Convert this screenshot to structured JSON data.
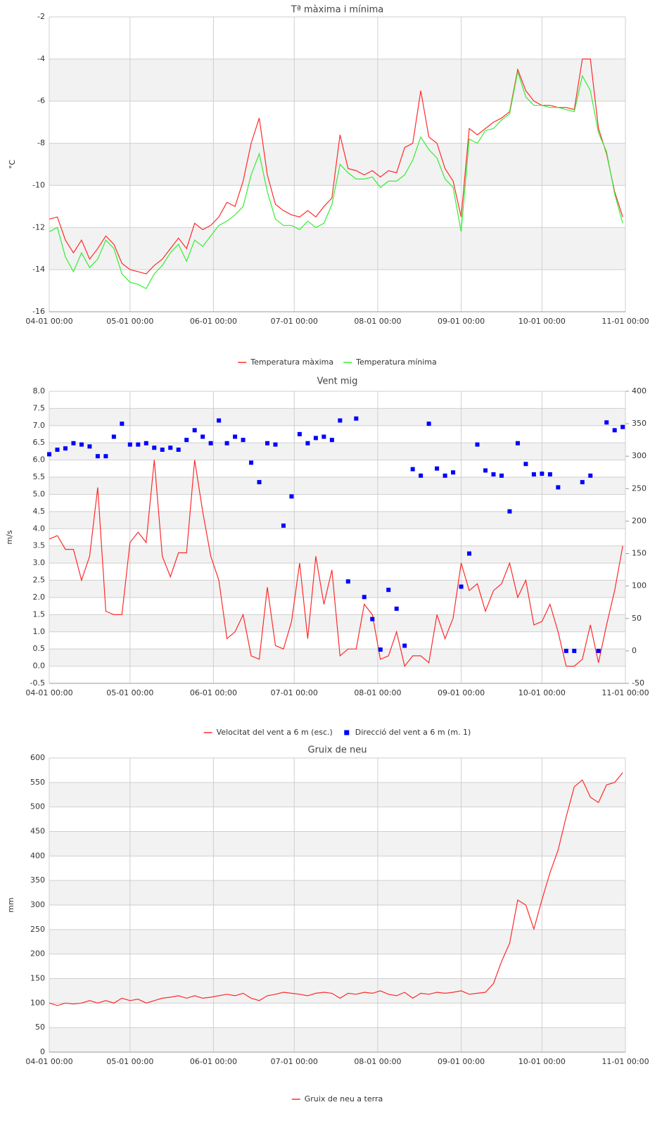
{
  "chart_data": [
    {
      "type": "line",
      "title": "Tª màxima i mínima",
      "y_label": "°C",
      "x": [
        "04-01 00:00",
        "04-04 00:00",
        "04-07 00:00",
        "04-10 00:00",
        "04-13 00:00",
        "04-16 00:00",
        "04-19 00:00",
        "04-22 00:00",
        "04-25 00:00",
        "04-28 00:00",
        "05-01 00:00",
        "05-04 00:00",
        "05-07 00:00",
        "05-10 00:00",
        "05-13 00:00",
        "05-16 00:00",
        "05-19 00:00",
        "05-22 00:00",
        "05-25 00:00",
        "05-28 00:00",
        "05-31 00:00",
        "06-03 00:00",
        "06-06 00:00",
        "06-09 00:00",
        "06-12 00:00",
        "06-15 00:00",
        "06-18 00:00",
        "06-21 00:00",
        "06-24 00:00",
        "06-27 00:00",
        "06-30 00:00",
        "07-03 00:00",
        "07-06 00:00",
        "07-09 00:00",
        "07-12 00:00",
        "07-15 00:00",
        "07-18 00:00",
        "07-21 00:00",
        "07-24 00:00",
        "07-27 00:00",
        "07-30 00:00",
        "08-02 00:00",
        "08-05 00:00",
        "08-08 00:00",
        "08-11 00:00",
        "08-14 00:00",
        "08-17 00:00",
        "08-20 00:00",
        "08-23 00:00",
        "08-26 00:00",
        "08-29 00:00",
        "09-01 00:00",
        "09-04 00:00",
        "09-07 00:00",
        "09-10 00:00",
        "09-13 00:00",
        "09-16 00:00",
        "09-19 00:00",
        "09-22 00:00",
        "09-25 00:00",
        "09-28 00:00",
        "10-01 00:00",
        "10-04 00:00",
        "10-07 00:00",
        "10-10 00:00",
        "10-13 00:00",
        "10-16 00:00",
        "10-19 00:00",
        "10-22 00:00",
        "10-25 00:00",
        "10-28 00:00",
        "10-31 00:00"
      ],
      "series": [
        {
          "name": "Temperatura màxima",
          "color": "#ff2a2a",
          "values": [
            -11.6,
            -11.5,
            -12.6,
            -13.2,
            -12.6,
            -13.5,
            -13.0,
            -12.4,
            -12.8,
            -13.7,
            -14.0,
            -14.1,
            -14.2,
            -13.8,
            -13.5,
            -13.0,
            -12.5,
            -13.0,
            -11.8,
            -12.1,
            -11.9,
            -11.5,
            -10.8,
            -11.0,
            -9.8,
            -8.0,
            -6.8,
            -9.5,
            -10.9,
            -11.2,
            -11.4,
            -11.5,
            -11.2,
            -11.5,
            -11.0,
            -10.6,
            -7.6,
            -9.2,
            -9.3,
            -9.5,
            -9.3,
            -9.6,
            -9.3,
            -9.4,
            -8.2,
            -8.0,
            -5.5,
            -7.7,
            -8.0,
            -9.2,
            -9.8,
            -11.5,
            -7.3,
            -7.6,
            -7.3,
            -7.0,
            -6.8,
            -6.5,
            -4.5,
            -5.5,
            -6.0,
            -6.2,
            -6.2,
            -6.3,
            -6.3,
            -6.4,
            -4.0,
            -4.0,
            -7.3,
            -8.5,
            -10.3,
            -11.5
          ]
        },
        {
          "name": "Temperatura mínima",
          "color": "#33ee33",
          "values": [
            -12.2,
            -12.0,
            -13.4,
            -14.1,
            -13.2,
            -13.9,
            -13.5,
            -12.6,
            -13.0,
            -14.2,
            -14.6,
            -14.7,
            -14.9,
            -14.2,
            -13.8,
            -13.2,
            -12.8,
            -13.6,
            -12.6,
            -12.9,
            -12.4,
            -11.9,
            -11.7,
            -11.4,
            -11.0,
            -9.5,
            -8.5,
            -10.3,
            -11.6,
            -11.9,
            -11.9,
            -12.1,
            -11.7,
            -12.0,
            -11.8,
            -10.9,
            -9.0,
            -9.4,
            -9.7,
            -9.7,
            -9.6,
            -10.1,
            -9.8,
            -9.8,
            -9.5,
            -8.8,
            -7.7,
            -8.3,
            -8.7,
            -9.7,
            -10.1,
            -12.2,
            -7.8,
            -8.0,
            -7.4,
            -7.3,
            -6.9,
            -6.6,
            -4.6,
            -5.8,
            -6.2,
            -6.2,
            -6.3,
            -6.3,
            -6.4,
            -6.5,
            -4.8,
            -5.5,
            -7.5,
            -8.4,
            -10.4,
            -11.8
          ]
        }
      ],
      "xlim": [
        "04-01 00:00",
        "11-01 00:00"
      ],
      "xticks": [
        "04-01 00:00",
        "05-01 00:00",
        "06-01 00:00",
        "07-01 00:00",
        "08-01 00:00",
        "09-01 00:00",
        "10-01 00:00",
        "11-01 00:00"
      ],
      "ylim": [
        -16,
        -2
      ],
      "yticks": [
        -16,
        -14,
        -12,
        -10,
        -8,
        -6,
        -4,
        -2
      ],
      "grid": true,
      "legend": "bottom"
    },
    {
      "type": "line",
      "title": "Vent mig",
      "y_label": "m/s",
      "x": [
        "04-01 00:00",
        "04-04 00:00",
        "04-07 00:00",
        "04-10 00:00",
        "04-13 00:00",
        "04-16 00:00",
        "04-19 00:00",
        "04-22 00:00",
        "04-25 00:00",
        "04-28 00:00",
        "05-01 00:00",
        "05-04 00:00",
        "05-07 00:00",
        "05-10 00:00",
        "05-13 00:00",
        "05-16 00:00",
        "05-19 00:00",
        "05-22 00:00",
        "05-25 00:00",
        "05-28 00:00",
        "05-31 00:00",
        "06-03 00:00",
        "06-06 00:00",
        "06-09 00:00",
        "06-12 00:00",
        "06-15 00:00",
        "06-18 00:00",
        "06-21 00:00",
        "06-24 00:00",
        "06-27 00:00",
        "06-30 00:00",
        "07-03 00:00",
        "07-06 00:00",
        "07-09 00:00",
        "07-12 00:00",
        "07-15 00:00",
        "07-18 00:00",
        "07-21 00:00",
        "07-24 00:00",
        "07-27 00:00",
        "07-30 00:00",
        "08-02 00:00",
        "08-05 00:00",
        "08-08 00:00",
        "08-11 00:00",
        "08-14 00:00",
        "08-17 00:00",
        "08-20 00:00",
        "08-23 00:00",
        "08-26 00:00",
        "08-29 00:00",
        "09-01 00:00",
        "09-04 00:00",
        "09-07 00:00",
        "09-10 00:00",
        "09-13 00:00",
        "09-16 00:00",
        "09-19 00:00",
        "09-22 00:00",
        "09-25 00:00",
        "09-28 00:00",
        "10-01 00:00",
        "10-04 00:00",
        "10-07 00:00",
        "10-10 00:00",
        "10-13 00:00",
        "10-16 00:00",
        "10-19 00:00",
        "10-22 00:00",
        "10-25 00:00",
        "10-28 00:00",
        "10-31 00:00"
      ],
      "series": [
        {
          "name": "Velocitat del vent a 6 m (esc.)",
          "color": "#ff2a2a",
          "values": [
            3.7,
            3.8,
            3.4,
            3.4,
            2.5,
            3.2,
            5.2,
            1.6,
            1.5,
            1.5,
            3.6,
            3.9,
            3.6,
            6.0,
            3.2,
            2.6,
            3.3,
            3.3,
            6.0,
            4.5,
            3.2,
            2.5,
            0.8,
            1.0,
            1.5,
            0.3,
            0.2,
            2.3,
            0.6,
            0.5,
            1.3,
            3.0,
            0.8,
            3.2,
            1.8,
            2.8,
            0.3,
            0.5,
            0.5,
            1.8,
            1.5,
            0.2,
            0.3,
            1.0,
            0.0,
            0.3,
            0.3,
            0.1,
            1.5,
            0.8,
            1.4,
            3.0,
            2.2,
            2.4,
            1.6,
            2.2,
            2.4,
            3.0,
            2.0,
            2.5,
            1.2,
            1.3,
            1.8,
            1.0,
            0.0,
            0.0,
            0.2,
            1.2,
            0.1,
            1.2,
            2.2,
            3.5
          ]
        },
        {
          "name": "Direcció del vent a 6 m (m. 1)",
          "color": "#0000ff",
          "type": "scatter",
          "axis": "y2",
          "values": [
            303,
            310,
            312,
            320,
            318,
            315,
            300,
            300,
            330,
            350,
            318,
            318,
            320,
            313,
            310,
            313,
            310,
            325,
            340,
            330,
            320,
            355,
            320,
            330,
            325,
            290,
            260,
            320,
            318,
            193,
            238,
            334,
            320,
            328,
            330,
            325,
            355,
            107,
            358,
            83,
            49,
            2,
            94,
            65,
            8,
            280,
            270,
            350,
            281,
            270,
            275,
            99,
            150,
            318,
            278,
            272,
            270,
            215,
            320,
            288,
            272,
            273,
            272,
            252,
            0,
            0,
            260,
            270,
            0,
            352,
            340,
            345
          ]
        }
      ],
      "xlim": [
        "04-01 00:00",
        "11-01 00:00"
      ],
      "xticks": [
        "04-01 00:00",
        "05-01 00:00",
        "06-01 00:00",
        "07-01 00:00",
        "08-01 00:00",
        "09-01 00:00",
        "10-01 00:00",
        "11-01 00:00"
      ],
      "ylim": [
        -0.5,
        8
      ],
      "yticks": [
        -0.5,
        {
          "value": 0,
          "label": "0.0"
        },
        0.5,
        {
          "value": 1,
          "label": "1.0"
        },
        1.5,
        {
          "value": 2,
          "label": "2.0"
        },
        2.5,
        {
          "value": 3,
          "label": "3.0"
        },
        3.5,
        {
          "value": 4,
          "label": "4.0"
        },
        4.5,
        {
          "value": 5,
          "label": "5.0"
        },
        5.5,
        {
          "value": 6,
          "label": "6.0"
        },
        6.5,
        {
          "value": 7,
          "label": "7.0"
        },
        7.5,
        {
          "value": 8,
          "label": "8.0"
        }
      ],
      "y2lim": [
        -50,
        400
      ],
      "y2ticks": [
        -50,
        0,
        50,
        100,
        150,
        200,
        250,
        300,
        350,
        400
      ],
      "grid": true,
      "legend": "bottom"
    },
    {
      "type": "line",
      "title": "Gruix de neu",
      "y_label": "mm",
      "x": [
        "04-01 00:00",
        "04-04 00:00",
        "04-07 00:00",
        "04-10 00:00",
        "04-13 00:00",
        "04-16 00:00",
        "04-19 00:00",
        "04-22 00:00",
        "04-25 00:00",
        "04-28 00:00",
        "05-01 00:00",
        "05-04 00:00",
        "05-07 00:00",
        "05-10 00:00",
        "05-13 00:00",
        "05-16 00:00",
        "05-19 00:00",
        "05-22 00:00",
        "05-25 00:00",
        "05-28 00:00",
        "05-31 00:00",
        "06-03 00:00",
        "06-06 00:00",
        "06-09 00:00",
        "06-12 00:00",
        "06-15 00:00",
        "06-18 00:00",
        "06-21 00:00",
        "06-24 00:00",
        "06-27 00:00",
        "06-30 00:00",
        "07-03 00:00",
        "07-06 00:00",
        "07-09 00:00",
        "07-12 00:00",
        "07-15 00:00",
        "07-18 00:00",
        "07-21 00:00",
        "07-24 00:00",
        "07-27 00:00",
        "07-30 00:00",
        "08-02 00:00",
        "08-05 00:00",
        "08-08 00:00",
        "08-11 00:00",
        "08-14 00:00",
        "08-17 00:00",
        "08-20 00:00",
        "08-23 00:00",
        "08-26 00:00",
        "08-29 00:00",
        "09-01 00:00",
        "09-04 00:00",
        "09-07 00:00",
        "09-10 00:00",
        "09-13 00:00",
        "09-16 00:00",
        "09-19 00:00",
        "09-22 00:00",
        "09-25 00:00",
        "09-28 00:00",
        "10-01 00:00",
        "10-04 00:00",
        "10-07 00:00",
        "10-10 00:00",
        "10-13 00:00",
        "10-16 00:00",
        "10-19 00:00",
        "10-22 00:00",
        "10-25 00:00",
        "10-28 00:00",
        "10-31 00:00"
      ],
      "series": [
        {
          "name": "Gruix de neu a terra",
          "color": "#ff2a2a",
          "values": [
            100,
            95,
            100,
            98,
            100,
            105,
            100,
            105,
            100,
            110,
            105,
            108,
            100,
            105,
            110,
            112,
            115,
            110,
            115,
            110,
            112,
            115,
            118,
            115,
            120,
            110,
            105,
            115,
            118,
            122,
            120,
            118,
            115,
            120,
            122,
            120,
            110,
            120,
            118,
            122,
            120,
            125,
            118,
            115,
            122,
            110,
            120,
            118,
            122,
            120,
            122,
            125,
            118,
            120,
            122,
            140,
            185,
            222,
            310,
            300,
            251,
            311,
            366,
            412,
            480,
            541,
            555,
            520,
            509,
            545,
            550,
            570
          ]
        }
      ],
      "xlim": [
        "04-01 00:00",
        "11-01 00:00"
      ],
      "xticks": [
        "04-01 00:00",
        "05-01 00:00",
        "06-01 00:00",
        "07-01 00:00",
        "08-01 00:00",
        "09-01 00:00",
        "10-01 00:00",
        "11-01 00:00"
      ],
      "ylim": [
        0,
        600
      ],
      "yticks": [
        0,
        50,
        100,
        150,
        200,
        250,
        300,
        350,
        400,
        450,
        500,
        550,
        600
      ],
      "grid": true,
      "legend": "bottom"
    }
  ]
}
